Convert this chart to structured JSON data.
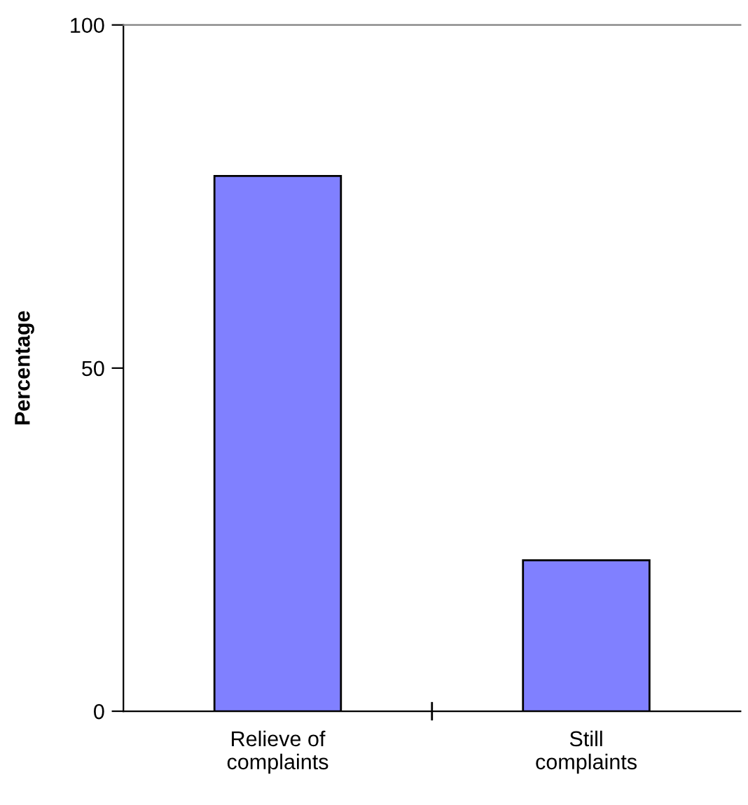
{
  "chart_data": {
    "type": "bar",
    "ylabel": "Percentage",
    "categories": [
      "Relieve of\ncomplaints",
      "Still\ncomplaints"
    ],
    "values": [
      78,
      22
    ],
    "color": "#8080ff",
    "ylim": [
      0,
      100
    ],
    "yticks": [
      0,
      50,
      100
    ],
    "grid": false
  }
}
